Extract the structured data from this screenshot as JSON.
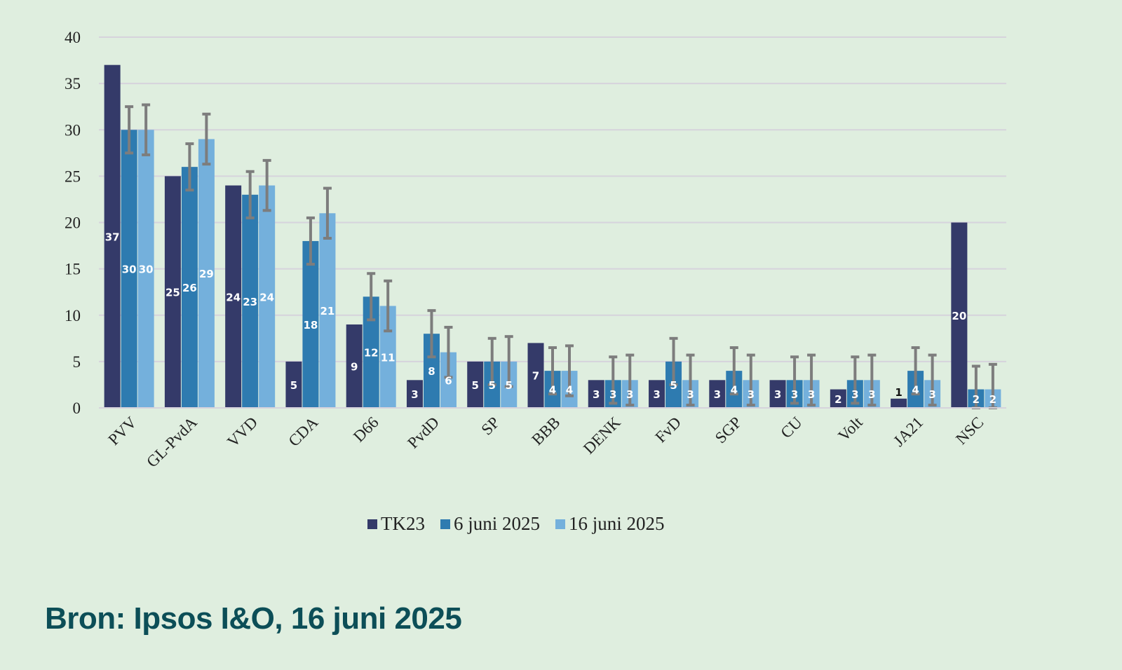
{
  "chart_data": {
    "type": "bar",
    "title": "",
    "xlabel": "",
    "ylabel": "",
    "ylim": [
      0,
      40
    ],
    "yticks": [
      0,
      5,
      10,
      15,
      20,
      25,
      30,
      35,
      40
    ],
    "grid": true,
    "legend_position": "bottom",
    "categories": [
      "PVV",
      "GL-PvdA",
      "VVD",
      "CDA",
      "D66",
      "PvdD",
      "SP",
      "BBB",
      "DENK",
      "FvD",
      "SGP",
      "CU",
      "Volt",
      "JA21",
      "NSC"
    ],
    "series": [
      {
        "name": "TK23",
        "color": "#343a69",
        "values": [
          37,
          25,
          24,
          5,
          9,
          3,
          5,
          7,
          3,
          3,
          3,
          3,
          2,
          1,
          20
        ]
      },
      {
        "name": "6 juni 2025",
        "color": "#2e7bb0",
        "values": [
          30,
          26,
          23,
          18,
          12,
          8,
          5,
          4,
          3,
          5,
          4,
          3,
          3,
          4,
          2
        ],
        "error": [
          2.5,
          2.5,
          2.5,
          2.5,
          2.5,
          2.5,
          2.5,
          2.5,
          2.5,
          2.5,
          2.5,
          2.5,
          2.5,
          2.5,
          2.5
        ]
      },
      {
        "name": "16 juni 2025",
        "color": "#74b0dc",
        "values": [
          30,
          29,
          24,
          21,
          11,
          6,
          5,
          4,
          3,
          3,
          3,
          3,
          3,
          3,
          2
        ],
        "error": [
          2.7,
          2.7,
          2.7,
          2.7,
          2.7,
          2.7,
          2.7,
          2.7,
          2.7,
          2.7,
          2.7,
          2.7,
          2.7,
          2.7,
          2.7
        ]
      }
    ]
  },
  "source": "Bron: Ipsos I&O, 16 juni 2025"
}
